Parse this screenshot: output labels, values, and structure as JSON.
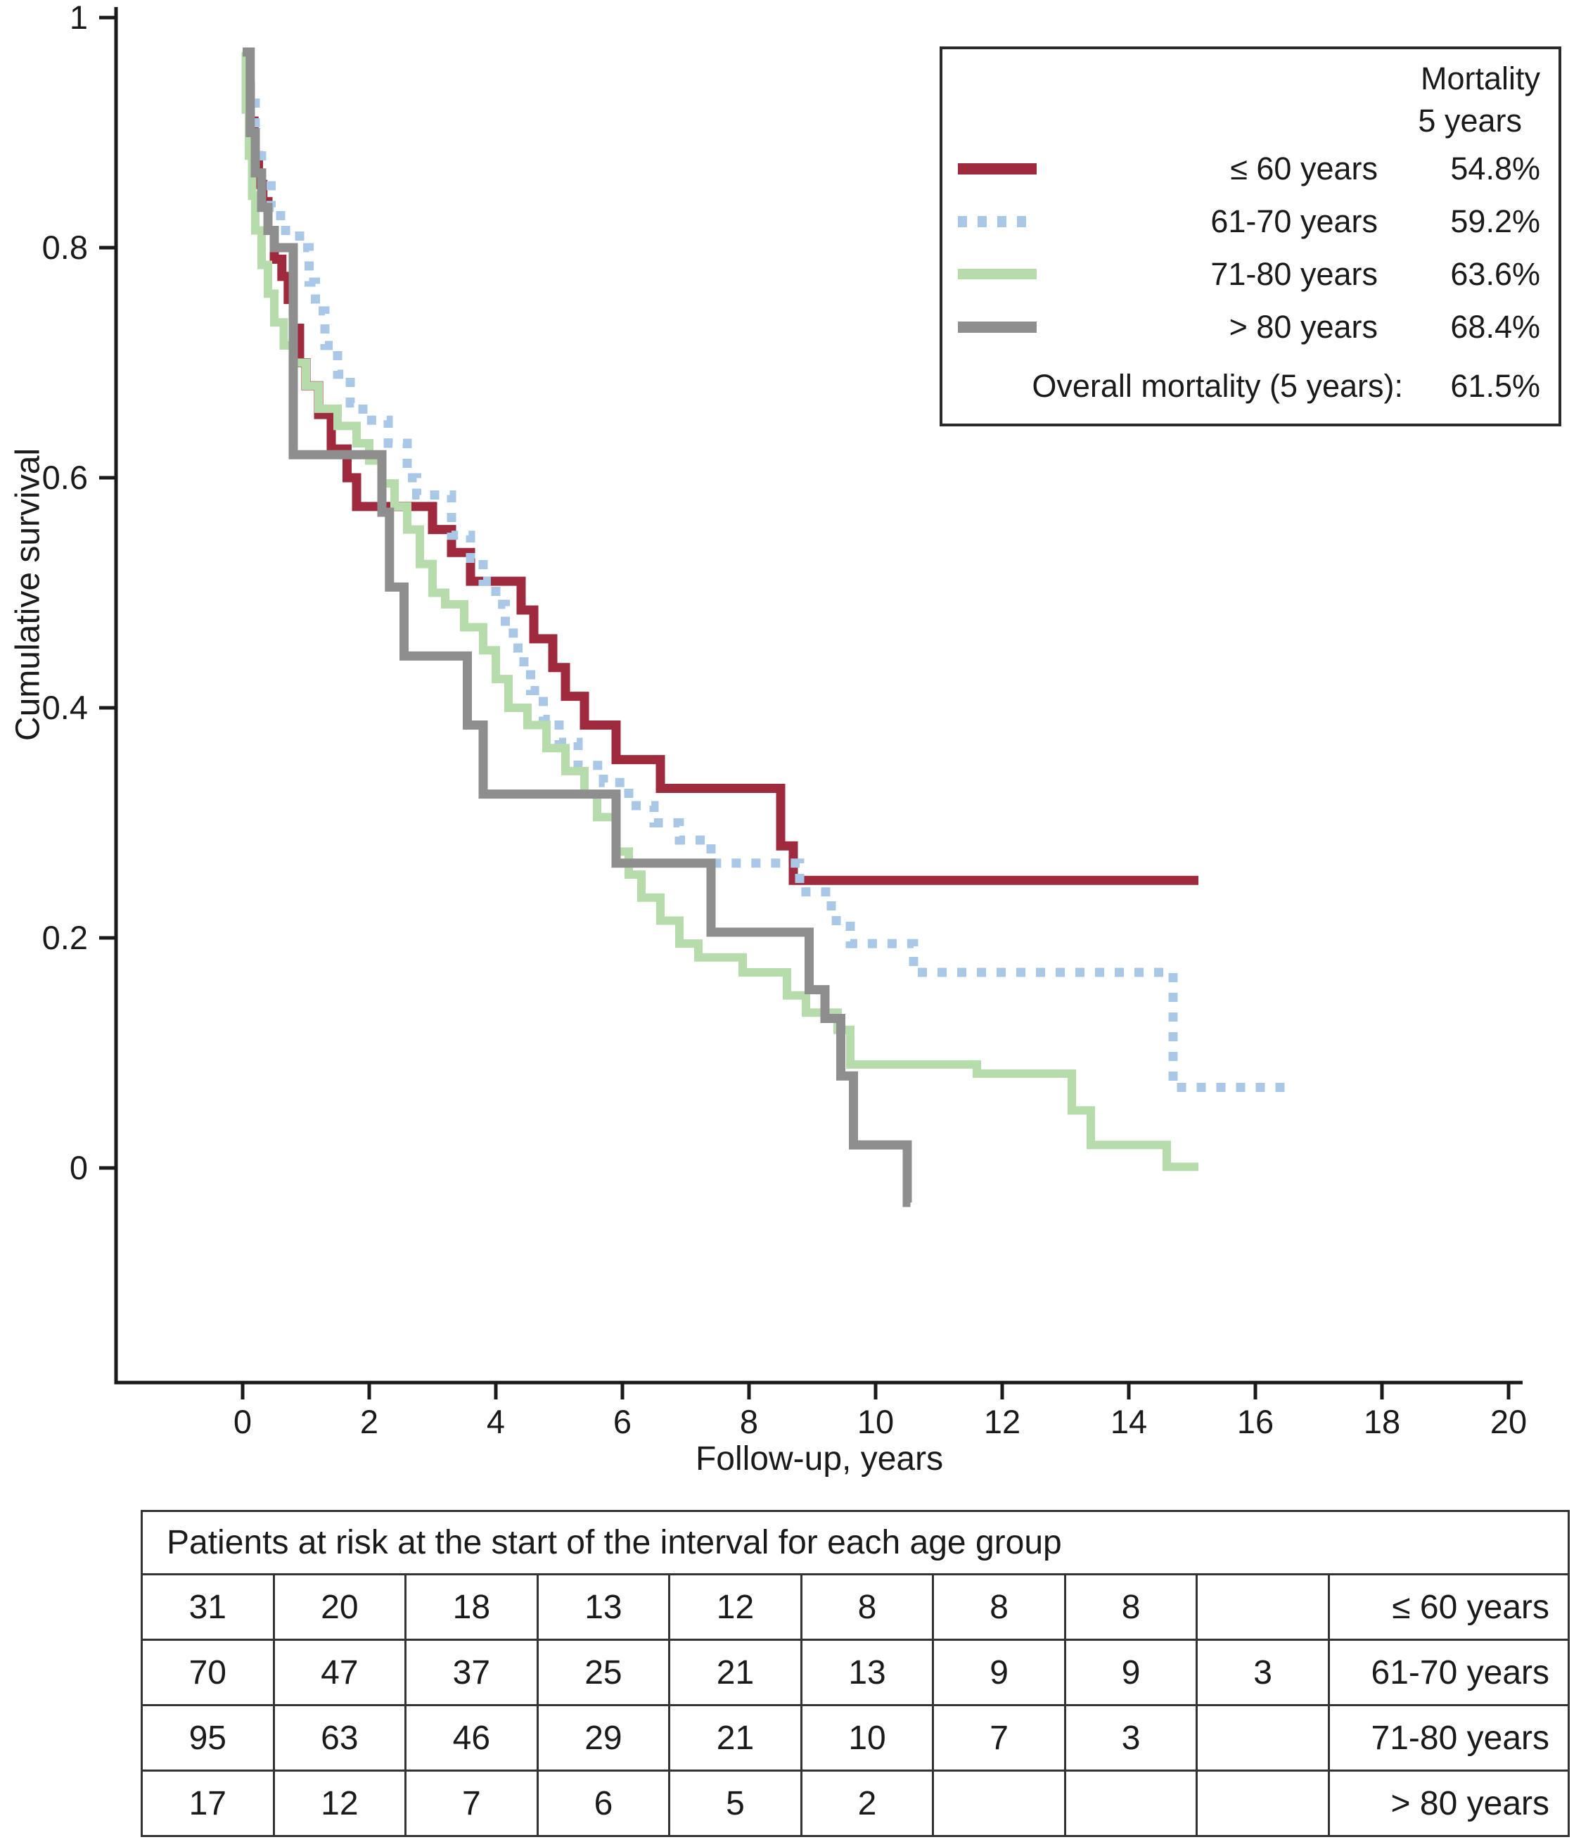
{
  "figure": {
    "x_axis_label": "Follow-up, years",
    "y_axis_label": "Cumulative survival"
  },
  "legend": {
    "header_line1": "Mortality",
    "header_line2": "5 years",
    "rows": [
      {
        "label": "≤ 60 years",
        "value": "54.8%"
      },
      {
        "label": "61-70 years",
        "value": "59.2%"
      },
      {
        "label": "71-80 years",
        "value": "63.6%"
      },
      {
        "label": "> 80 years",
        "value": "68.4%"
      }
    ],
    "footer_label": "Overall mortality (5 years):",
    "footer_value": "61.5%"
  },
  "risk_table": {
    "title": "Patients at risk at the start of the interval for each age group",
    "rows": [
      {
        "counts": [
          "31",
          "20",
          "18",
          "13",
          "12",
          "8",
          "8",
          "8",
          ""
        ],
        "label": "≤ 60 years"
      },
      {
        "counts": [
          "70",
          "47",
          "37",
          "25",
          "21",
          "13",
          "9",
          "9",
          "3"
        ],
        "label": "61-70 years"
      },
      {
        "counts": [
          "95",
          "63",
          "46",
          "29",
          "21",
          "10",
          "7",
          "3",
          ""
        ],
        "label": "71-80 years"
      },
      {
        "counts": [
          "17",
          "12",
          "7",
          "6",
          "5",
          "2",
          "",
          "",
          ""
        ],
        "label": "> 80 years"
      }
    ]
  },
  "chart_data": {
    "type": "line",
    "subtype": "kaplan-meier-step",
    "title": "",
    "xlabel": "Follow-up, years",
    "ylabel": "Cumulative survival",
    "xlim": [
      0,
      20
    ],
    "ylim": [
      0,
      1
    ],
    "grid": false,
    "legend_position": "top-right",
    "x_ticks": [
      0,
      2,
      4,
      6,
      8,
      10,
      12,
      14,
      16,
      18,
      20
    ],
    "x_tick_labels": [
      "0",
      "2",
      "4",
      "6",
      "8",
      "10",
      "12",
      "14",
      "16",
      "18",
      "20"
    ],
    "y_ticks": [
      0,
      0.2,
      0.4,
      0.6,
      0.8,
      1
    ],
    "y_tick_labels": [
      "0",
      "0.2",
      "0.4",
      "0.6",
      "0.8",
      "1"
    ],
    "overall_mortality_5yr": "61.5%",
    "series": [
      {
        "id": "le60",
        "name": "≤ 60 years",
        "color": "#a02a3d",
        "width": 13,
        "dash": null,
        "mortality_5yr": "54.8%",
        "end_x": 15.1,
        "points": [
          [
            0,
            0.97
          ],
          [
            0.08,
            0.94
          ],
          [
            0.12,
            0.91
          ],
          [
            0.18,
            0.88
          ],
          [
            0.25,
            0.855
          ],
          [
            0.32,
            0.84
          ],
          [
            0.4,
            0.815
          ],
          [
            0.5,
            0.79
          ],
          [
            0.62,
            0.775
          ],
          [
            0.72,
            0.755
          ],
          [
            0.8,
            0.73
          ],
          [
            0.9,
            0.7
          ],
          [
            1,
            0.68
          ],
          [
            1.2,
            0.655
          ],
          [
            1.4,
            0.625
          ],
          [
            1.65,
            0.6
          ],
          [
            1.8,
            0.575
          ],
          [
            3,
            0.555
          ],
          [
            3.3,
            0.535
          ],
          [
            3.6,
            0.51
          ],
          [
            4.4,
            0.485
          ],
          [
            4.6,
            0.46
          ],
          [
            4.9,
            0.435
          ],
          [
            5.1,
            0.41
          ],
          [
            5.4,
            0.385
          ],
          [
            5.9,
            0.355
          ],
          [
            6.6,
            0.33
          ],
          [
            8.5,
            0.28
          ],
          [
            8.7,
            0.25
          ]
        ]
      },
      {
        "id": "61to70",
        "name": "61-70 years",
        "color": "#a9c8e8",
        "width": 13,
        "dash": "13 15",
        "mortality_5yr": "59.2%",
        "end_x": 16.5,
        "points": [
          [
            0,
            0.97
          ],
          [
            0.1,
            0.93
          ],
          [
            0.2,
            0.89
          ],
          [
            0.3,
            0.86
          ],
          [
            0.45,
            0.835
          ],
          [
            0.6,
            0.815
          ],
          [
            0.9,
            0.8
          ],
          [
            1.05,
            0.77
          ],
          [
            1.15,
            0.745
          ],
          [
            1.3,
            0.715
          ],
          [
            1.5,
            0.69
          ],
          [
            1.7,
            0.665
          ],
          [
            1.9,
            0.65
          ],
          [
            2.3,
            0.63
          ],
          [
            2.6,
            0.6
          ],
          [
            2.75,
            0.585
          ],
          [
            3.3,
            0.55
          ],
          [
            3.6,
            0.53
          ],
          [
            3.8,
            0.51
          ],
          [
            4,
            0.49
          ],
          [
            4.15,
            0.465
          ],
          [
            4.35,
            0.44
          ],
          [
            4.55,
            0.415
          ],
          [
            4.75,
            0.39
          ],
          [
            5,
            0.37
          ],
          [
            5.3,
            0.35
          ],
          [
            5.7,
            0.335
          ],
          [
            6.1,
            0.315
          ],
          [
            6.5,
            0.3
          ],
          [
            6.9,
            0.285
          ],
          [
            7.4,
            0.265
          ],
          [
            8.8,
            0.24
          ],
          [
            9.3,
            0.215
          ],
          [
            9.6,
            0.195
          ],
          [
            10.6,
            0.17
          ],
          [
            14.7,
            0.07
          ]
        ]
      },
      {
        "id": "71to80",
        "name": "71-80 years",
        "color": "#b6dcab",
        "width": 12,
        "dash": null,
        "mortality_5yr": "63.6%",
        "end_x": 15.1,
        "points": [
          [
            0,
            0.97
          ],
          [
            0.05,
            0.92
          ],
          [
            0.1,
            0.88
          ],
          [
            0.15,
            0.845
          ],
          [
            0.2,
            0.815
          ],
          [
            0.3,
            0.785
          ],
          [
            0.4,
            0.76
          ],
          [
            0.5,
            0.735
          ],
          [
            0.65,
            0.715
          ],
          [
            0.8,
            0.7
          ],
          [
            1,
            0.68
          ],
          [
            1.2,
            0.66
          ],
          [
            1.5,
            0.645
          ],
          [
            1.8,
            0.63
          ],
          [
            2,
            0.615
          ],
          [
            2.2,
            0.595
          ],
          [
            2.4,
            0.575
          ],
          [
            2.6,
            0.555
          ],
          [
            2.8,
            0.525
          ],
          [
            3,
            0.5
          ],
          [
            3.2,
            0.49
          ],
          [
            3.5,
            0.47
          ],
          [
            3.8,
            0.45
          ],
          [
            4,
            0.425
          ],
          [
            4.2,
            0.4
          ],
          [
            4.5,
            0.385
          ],
          [
            4.8,
            0.365
          ],
          [
            5.1,
            0.345
          ],
          [
            5.4,
            0.325
          ],
          [
            5.6,
            0.305
          ],
          [
            5.9,
            0.275
          ],
          [
            6.1,
            0.255
          ],
          [
            6.3,
            0.235
          ],
          [
            6.6,
            0.215
          ],
          [
            6.9,
            0.195
          ],
          [
            7.2,
            0.183
          ],
          [
            7.9,
            0.17
          ],
          [
            8.6,
            0.15
          ],
          [
            8.9,
            0.135
          ],
          [
            9.4,
            0.12
          ],
          [
            9.6,
            0.09
          ],
          [
            11.6,
            0.082
          ],
          [
            13.1,
            0.05
          ],
          [
            13.4,
            0.02
          ],
          [
            14.6,
            0.001
          ]
        ]
      },
      {
        "id": "gt80",
        "name": "> 80 years",
        "color": "#8e8e8e",
        "width": 13,
        "dash": null,
        "mortality_5yr": "68.4%",
        "end_x": 10.55,
        "points": [
          [
            0,
            0.97
          ],
          [
            0.12,
            0.9
          ],
          [
            0.2,
            0.865
          ],
          [
            0.3,
            0.835
          ],
          [
            0.4,
            0.815
          ],
          [
            0.5,
            0.8
          ],
          [
            0.8,
            0.62
          ],
          [
            2.2,
            0.57
          ],
          [
            2.32,
            0.505
          ],
          [
            2.55,
            0.445
          ],
          [
            3.55,
            0.385
          ],
          [
            3.8,
            0.325
          ],
          [
            5.9,
            0.265
          ],
          [
            7.4,
            0.205
          ],
          [
            8.95,
            0.155
          ],
          [
            9.2,
            0.13
          ],
          [
            9.45,
            0.08
          ],
          [
            9.65,
            0.02
          ],
          [
            10.5,
            -0.03
          ]
        ]
      }
    ]
  }
}
